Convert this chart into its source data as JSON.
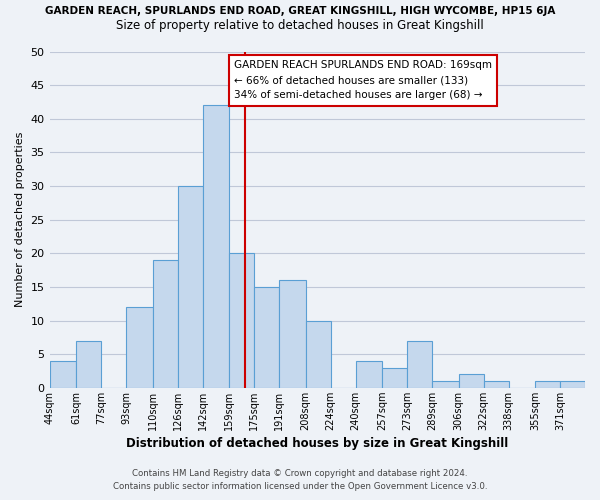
{
  "title_top": "GARDEN REACH, SPURLANDS END ROAD, GREAT KINGSHILL, HIGH WYCOMBE, HP15 6JA",
  "title_sub": "Size of property relative to detached houses in Great Kingshill",
  "xlabel": "Distribution of detached houses by size in Great Kingshill",
  "ylabel": "Number of detached properties",
  "bin_edges": [
    44,
    61,
    77,
    93,
    110,
    126,
    142,
    159,
    175,
    191,
    208,
    224,
    240,
    257,
    273,
    289,
    306,
    322,
    338,
    355,
    371,
    387
  ],
  "counts": [
    4,
    7,
    0,
    12,
    19,
    30,
    42,
    20,
    15,
    16,
    10,
    0,
    4,
    3,
    7,
    1,
    2,
    1,
    0,
    1,
    1
  ],
  "bar_color": "#c5d8ed",
  "bar_edge_color": "#5a9fd4",
  "grid_color": "#c0c8d8",
  "vline_x": 169,
  "vline_color": "#cc0000",
  "annotation_title": "GARDEN REACH SPURLANDS END ROAD: 169sqm",
  "annotation_line1": "← 66% of detached houses are smaller (133)",
  "annotation_line2": "34% of semi-detached houses are larger (68) →",
  "annotation_box_color": "#ffffff",
  "annotation_border_color": "#cc0000",
  "ylim": [
    0,
    50
  ],
  "yticks": [
    0,
    5,
    10,
    15,
    20,
    25,
    30,
    35,
    40,
    45,
    50
  ],
  "xtick_labels": [
    "44sqm",
    "61sqm",
    "77sqm",
    "93sqm",
    "110sqm",
    "126sqm",
    "142sqm",
    "159sqm",
    "175sqm",
    "191sqm",
    "208sqm",
    "224sqm",
    "240sqm",
    "257sqm",
    "273sqm",
    "289sqm",
    "306sqm",
    "322sqm",
    "338sqm",
    "355sqm",
    "371sqm"
  ],
  "footer1": "Contains HM Land Registry data © Crown copyright and database right 2024.",
  "footer2": "Contains public sector information licensed under the Open Government Licence v3.0.",
  "bg_color": "#eef2f7"
}
